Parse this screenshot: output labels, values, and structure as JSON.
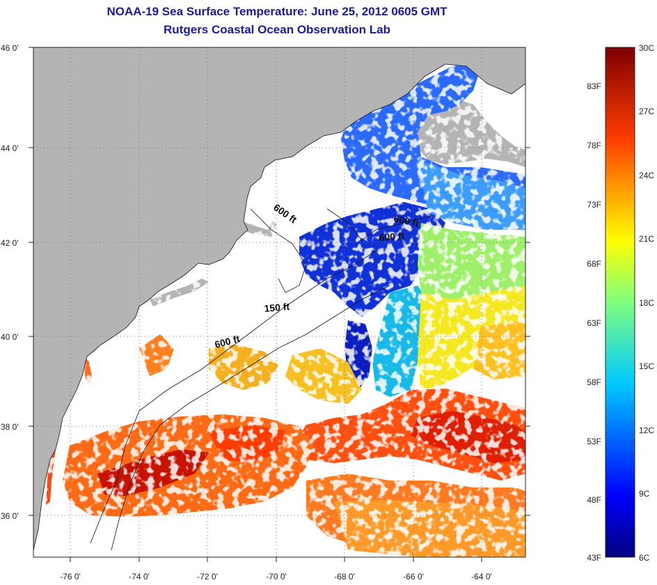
{
  "title": {
    "line1": "NOAA-19 Sea Surface Temperature:  June 25, 2012 0605 GMT",
    "line2": "Rutgers Coastal Ocean Observation Lab"
  },
  "map": {
    "lat_labels": [
      "46 0'",
      "44 0'",
      "42 0'",
      "40 0'",
      "38 0'",
      "36 0'"
    ],
    "lon_labels": [
      "-76 0'",
      "-74 0'",
      "-72 0'",
      "-70 0'",
      "-68 0'",
      "-66 0'",
      "-64 0'"
    ],
    "contour_labels": [
      "600 ft",
      "600 ft",
      "600 ft",
      "150 ft",
      "600 ft"
    ],
    "colors": {
      "land": "#b4b4b4",
      "ocean_nodata": "#ffffff",
      "graticule": "#777777"
    }
  },
  "colorbar": {
    "celsius_labels": [
      "30C",
      "27C",
      "24C",
      "21C",
      "18C",
      "15C",
      "12C",
      "9C",
      "6C"
    ],
    "fahrenheit_labels": [
      "83F",
      "78F",
      "73F",
      "68F",
      "63F",
      "58F",
      "53F",
      "48F",
      "43F"
    ],
    "range_c": [
      6,
      30
    ],
    "range_f": [
      43,
      86
    ]
  }
}
